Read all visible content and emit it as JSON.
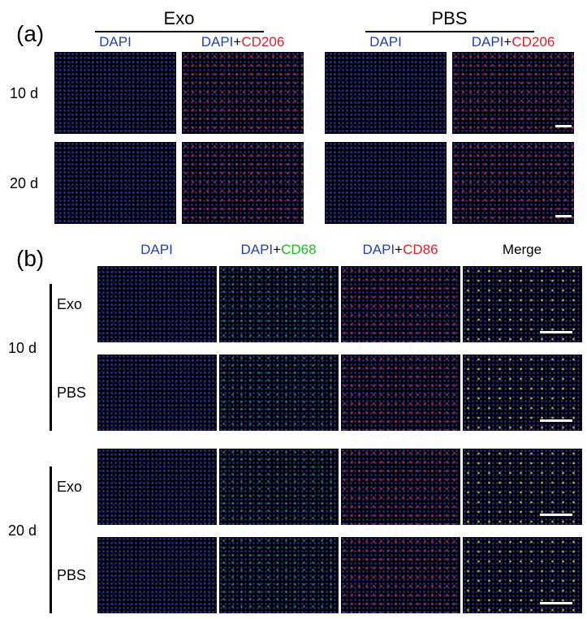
{
  "panel_a": {
    "label": "(a)",
    "groups": [
      {
        "title": "Exo",
        "columns": [
          {
            "parts": [
              "DAPI"
            ]
          },
          {
            "parts": [
              "DAPI",
              "+",
              "CD206"
            ]
          }
        ]
      },
      {
        "title": "PBS",
        "columns": [
          {
            "parts": [
              "DAPI"
            ]
          },
          {
            "parts": [
              "DAPI",
              "+",
              "CD206"
            ]
          }
        ]
      }
    ],
    "rows": [
      "10 d",
      "20 d"
    ]
  },
  "panel_b": {
    "label": "(b)",
    "columns": [
      {
        "parts": [
          "DAPI"
        ]
      },
      {
        "parts": [
          "DAPI",
          "+",
          "CD68"
        ]
      },
      {
        "parts": [
          "DAPI",
          "+",
          "CD86"
        ]
      },
      {
        "parts": [
          "Merge"
        ]
      }
    ],
    "timepoints": [
      {
        "label": "10 d",
        "rows": [
          "Exo",
          "PBS"
        ]
      },
      {
        "label": "20 d",
        "rows": [
          "Exo",
          "PBS"
        ]
      }
    ]
  }
}
